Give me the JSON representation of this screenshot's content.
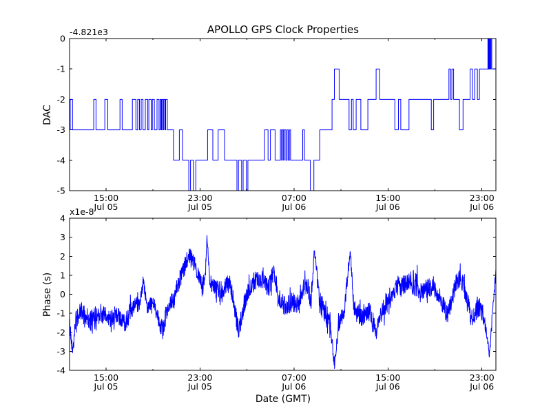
{
  "figure": {
    "background": "#ffffff",
    "line_color": "#0000ff",
    "axis_color": "#000000"
  },
  "chart_data": [
    {
      "type": "line",
      "id": "dac",
      "title": "APOLLO GPS Clock Properties",
      "ylabel": "DAC",
      "offset_text": "-4.821e3",
      "ylim": [
        -5,
        0
      ],
      "ytick_values": [
        0,
        -1,
        -2,
        -3,
        -4,
        -5
      ],
      "ytick_labels": [
        "0",
        "-1",
        "-2",
        "-3",
        "-4",
        "-5"
      ],
      "t_span": 36.3,
      "xtick_t": [
        3.11,
        11.11,
        19.11,
        27.11,
        35.11
      ],
      "xtick_minor_t": [
        7.11,
        15.11,
        23.11,
        31.11
      ],
      "xtick_labels": [
        [
          "15:00",
          "Jul 05"
        ],
        [
          "23:00",
          "Jul 05"
        ],
        [
          "07:00",
          "Jul 06"
        ],
        [
          "15:00",
          "Jul 06"
        ],
        [
          "23:00",
          "Jul 06"
        ]
      ],
      "grid": false,
      "style": "step",
      "steps": [
        [
          0,
          -3
        ],
        [
          0.05,
          -2
        ],
        [
          0.25,
          -3
        ],
        [
          2.06,
          -2
        ],
        [
          2.25,
          -3
        ],
        [
          3,
          -2
        ],
        [
          3.25,
          -3
        ],
        [
          4.29,
          -2
        ],
        [
          4.48,
          -3
        ],
        [
          5.35,
          -2
        ],
        [
          5.65,
          -3
        ],
        [
          5.8,
          -2
        ],
        [
          5.95,
          -3
        ],
        [
          6.1,
          -2
        ],
        [
          6.25,
          -3
        ],
        [
          6.45,
          -2
        ],
        [
          6.65,
          -3
        ],
        [
          6.75,
          -2
        ],
        [
          6.95,
          -3
        ],
        [
          7.05,
          -2
        ],
        [
          7.22,
          -3
        ],
        [
          7.45,
          -2
        ],
        [
          7.62,
          -3
        ],
        [
          7.72,
          -2
        ],
        [
          7.8,
          -3
        ],
        [
          7.86,
          -2
        ],
        [
          7.96,
          -3
        ],
        [
          8.02,
          -2
        ],
        [
          8.12,
          -3
        ],
        [
          8.18,
          -2
        ],
        [
          8.32,
          -3
        ],
        [
          8.85,
          -4
        ],
        [
          9.35,
          -3
        ],
        [
          9.62,
          -4
        ],
        [
          10.15,
          -5
        ],
        [
          10.3,
          -4
        ],
        [
          10.55,
          -5
        ],
        [
          10.75,
          -4
        ],
        [
          11.75,
          -3
        ],
        [
          12.2,
          -4
        ],
        [
          12.65,
          -3
        ],
        [
          13.2,
          -4
        ],
        [
          14.25,
          -5
        ],
        [
          14.38,
          -4
        ],
        [
          14.65,
          -5
        ],
        [
          14.78,
          -4
        ],
        [
          15.05,
          -5
        ],
        [
          15.18,
          -4
        ],
        [
          16.6,
          -3
        ],
        [
          16.9,
          -4
        ],
        [
          17.1,
          -3
        ],
        [
          17.5,
          -4
        ],
        [
          17.95,
          -3
        ],
        [
          18.05,
          -4
        ],
        [
          18.12,
          -3
        ],
        [
          18.22,
          -4
        ],
        [
          18.28,
          -3
        ],
        [
          18.42,
          -4
        ],
        [
          18.52,
          -3
        ],
        [
          18.62,
          -4
        ],
        [
          18.72,
          -3
        ],
        [
          18.82,
          -4
        ],
        [
          19.85,
          -3
        ],
        [
          20,
          -4
        ],
        [
          20.5,
          -5
        ],
        [
          20.8,
          -4
        ],
        [
          21.3,
          -3
        ],
        [
          22.35,
          -2
        ],
        [
          22.55,
          -1
        ],
        [
          22.95,
          -2
        ],
        [
          23.8,
          -3
        ],
        [
          24,
          -2
        ],
        [
          24.15,
          -3
        ],
        [
          24.4,
          -2
        ],
        [
          24.8,
          -3
        ],
        [
          25.4,
          -2
        ],
        [
          26.1,
          -1
        ],
        [
          26.4,
          -2
        ],
        [
          27.7,
          -3
        ],
        [
          28,
          -2
        ],
        [
          28.2,
          -3
        ],
        [
          28.9,
          -2
        ],
        [
          30.8,
          -3
        ],
        [
          31,
          -2
        ],
        [
          32.3,
          -1
        ],
        [
          32.45,
          -2
        ],
        [
          32.55,
          -1
        ],
        [
          32.7,
          -2
        ],
        [
          33.2,
          -3
        ],
        [
          33.5,
          -2
        ],
        [
          34.1,
          -1
        ],
        [
          34.3,
          -2
        ],
        [
          34.5,
          -1
        ],
        [
          34.72,
          -2
        ],
        [
          34.9,
          -1
        ],
        [
          35.62,
          0
        ],
        [
          35.66,
          -1
        ],
        [
          35.7,
          0
        ],
        [
          35.74,
          -1
        ],
        [
          35.78,
          0
        ],
        [
          35.84,
          -1
        ],
        [
          35.88,
          0
        ],
        [
          35.95,
          -1
        ]
      ]
    },
    {
      "type": "line",
      "id": "phase",
      "ylabel": "Phase (s)",
      "offset_text": "x1e-8",
      "xlabel": "Date (GMT)",
      "ylim": [
        -4,
        4
      ],
      "ytick_values": [
        4,
        3,
        2,
        1,
        0,
        -1,
        -2,
        -3,
        -4
      ],
      "ytick_labels": [
        "4",
        "3",
        "2",
        "1",
        "0",
        "-1",
        "-2",
        "-3",
        "-4"
      ],
      "t_span": 36.3,
      "xtick_t": [
        3.11,
        11.11,
        19.11,
        27.11,
        35.11
      ],
      "xtick_minor_t": [
        7.11,
        15.11,
        23.11,
        31.11
      ],
      "xtick_labels": [
        [
          "15:00",
          "Jul 05"
        ],
        [
          "23:00",
          "Jul 05"
        ],
        [
          "07:00",
          "Jul 06"
        ],
        [
          "15:00",
          "Jul 06"
        ],
        [
          "23:00",
          "Jul 06"
        ]
      ],
      "grid": false,
      "style": "noisy",
      "noise_seed": 42,
      "sample_dt": 0.02,
      "anchors": [
        [
          0,
          -1.6,
          0.6
        ],
        [
          0.25,
          -3,
          0.15
        ],
        [
          0.5,
          -1.4,
          0.5
        ],
        [
          1,
          -0.9,
          0.5
        ],
        [
          1.9,
          -1.5,
          0.7
        ],
        [
          2.5,
          -0.9,
          0.5
        ],
        [
          3.3,
          -1.3,
          0.5
        ],
        [
          4,
          -1.1,
          0.5
        ],
        [
          4.7,
          -1.5,
          0.5
        ],
        [
          5.2,
          -0.9,
          0.5
        ],
        [
          6,
          -0.4,
          0.4
        ],
        [
          6.3,
          0.5,
          0.3
        ],
        [
          6.6,
          -0.6,
          0.4
        ],
        [
          7.2,
          -0.5,
          0.4
        ],
        [
          7.9,
          -1.9,
          0.5
        ],
        [
          8.4,
          -0.6,
          0.4
        ],
        [
          8.9,
          -0.2,
          0.5
        ],
        [
          9.4,
          0.8,
          0.5
        ],
        [
          9.9,
          1.6,
          0.5
        ],
        [
          10.25,
          2.1,
          0.5
        ],
        [
          10.55,
          1.7,
          0.4
        ],
        [
          10.9,
          1.1,
          0.4
        ],
        [
          11.25,
          0.5,
          0.4
        ],
        [
          11.55,
          0.8,
          0.4
        ],
        [
          11.7,
          3.1,
          0.15
        ],
        [
          11.95,
          0.6,
          0.4
        ],
        [
          12.4,
          0.3,
          0.5
        ],
        [
          13,
          0.2,
          0.5
        ],
        [
          13.6,
          0.6,
          0.5
        ],
        [
          14,
          -0.5,
          0.5
        ],
        [
          14.4,
          -2,
          0.5
        ],
        [
          14.9,
          -0.4,
          0.5
        ],
        [
          15.6,
          0.7,
          0.5
        ],
        [
          16.3,
          0.8,
          0.5
        ],
        [
          17,
          0.3,
          0.5
        ],
        [
          17.4,
          1.3,
          0.5
        ],
        [
          17.8,
          -0.2,
          0.5
        ],
        [
          18.4,
          -0.7,
          0.5
        ],
        [
          18.9,
          -0.4,
          0.5
        ],
        [
          19.6,
          -0.5,
          0.5
        ],
        [
          20.2,
          0.7,
          0.5
        ],
        [
          20.55,
          -0.4,
          0.5
        ],
        [
          20.85,
          2.3,
          0.3
        ],
        [
          21.3,
          -0.5,
          0.6
        ],
        [
          21.9,
          -1,
          0.6
        ],
        [
          22.3,
          -2.2,
          0.5
        ],
        [
          22.55,
          -3.6,
          0.35
        ],
        [
          22.9,
          -1.7,
          0.5
        ],
        [
          23.4,
          -0.7,
          0.5
        ],
        [
          23.9,
          2.3,
          0.25
        ],
        [
          24.2,
          -0.8,
          0.5
        ],
        [
          24.8,
          -1.2,
          0.5
        ],
        [
          25.6,
          -0.9,
          0.5
        ],
        [
          26.1,
          -2,
          0.4
        ],
        [
          26.6,
          -0.9,
          0.5
        ],
        [
          27.3,
          -0.3,
          0.5
        ],
        [
          27.9,
          0.4,
          0.5
        ],
        [
          28.6,
          0.5,
          0.5
        ],
        [
          29.3,
          0.6,
          0.7
        ],
        [
          30,
          0.2,
          0.5
        ],
        [
          30.7,
          0.4,
          0.5
        ],
        [
          31.4,
          0,
          0.5
        ],
        [
          32.2,
          -1.1,
          0.5
        ],
        [
          32.9,
          0.6,
          0.5
        ],
        [
          33.3,
          0.9,
          0.5
        ],
        [
          33.8,
          -0.1,
          0.5
        ],
        [
          34.2,
          -1.3,
          0.5
        ],
        [
          34.8,
          -0.6,
          0.6
        ],
        [
          35.3,
          -1.2,
          0.5
        ],
        [
          35.75,
          -3.2,
          0.2
        ],
        [
          36.05,
          -0.7,
          0.5
        ],
        [
          36.3,
          1.2,
          0.2
        ]
      ]
    }
  ]
}
